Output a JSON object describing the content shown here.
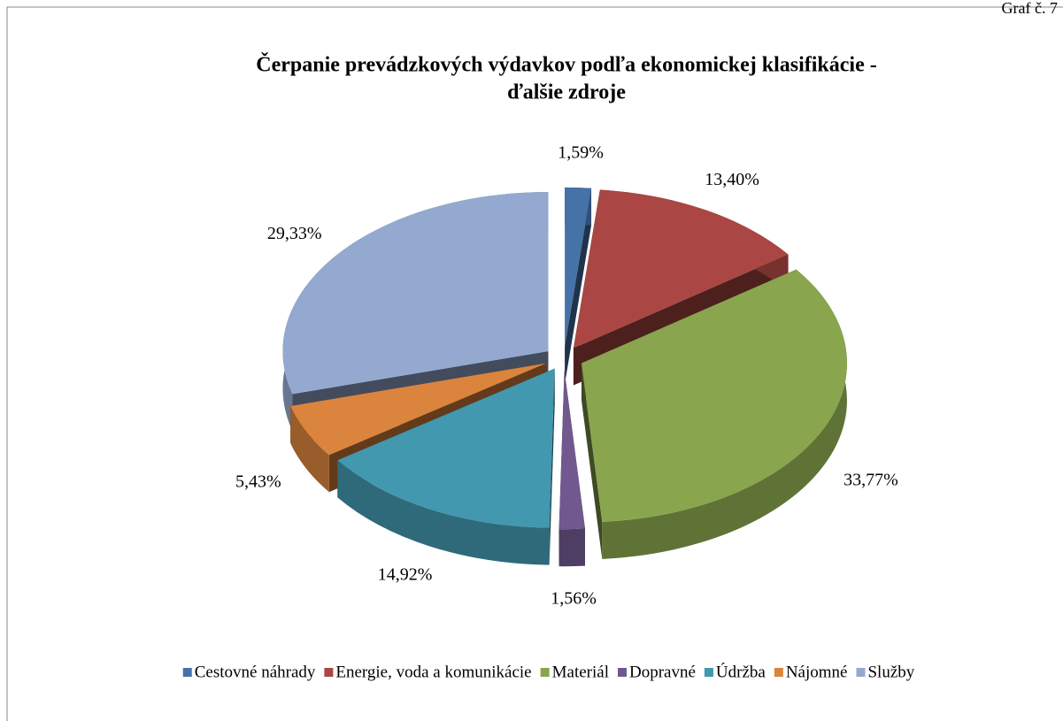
{
  "caption": "Graf č. 7",
  "chart_data": {
    "type": "pie3d",
    "title": "Čerpanie prevádzkových výdavkov podľa ekonomickej klasifikácie -",
    "subtitle": "ďalšie zdroje",
    "categories": [
      "Cestovné náhrady",
      "Energie, voda a komunikácie",
      "Materiál",
      "Dopravné",
      "Údržba",
      "Nájomné",
      "Služby"
    ],
    "values": [
      1.59,
      13.4,
      33.77,
      1.56,
      14.92,
      5.43,
      29.33
    ],
    "value_labels": [
      "1,59%",
      "13,40%",
      "33,77%",
      "1,56%",
      "14,92%",
      "5,43%",
      "29,33%"
    ],
    "colors": [
      "#4572a7",
      "#aa4643",
      "#89a54e",
      "#71588f",
      "#4198af",
      "#db843d",
      "#93a9cf"
    ],
    "legend": "bottom"
  }
}
